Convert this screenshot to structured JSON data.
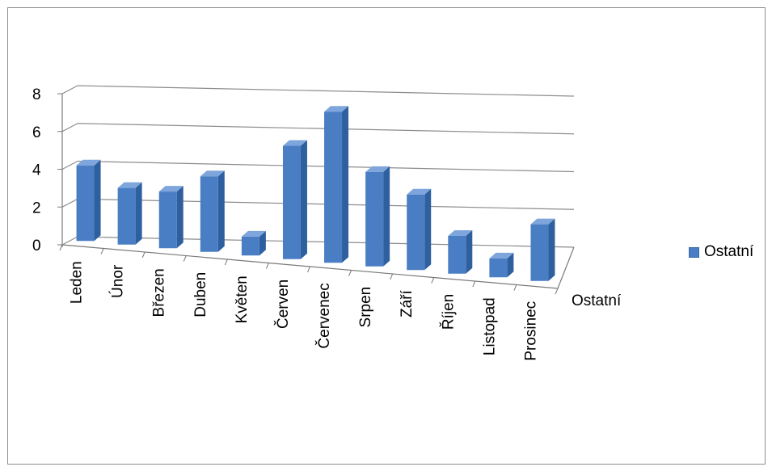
{
  "chart_data": {
    "type": "bar",
    "style": "3d-column",
    "categories": [
      "Leden",
      "Únor",
      "Březen",
      "Duben",
      "Květen",
      "Červen",
      "Červenec",
      "Srpen",
      "Září",
      "Říjen",
      "Listopad",
      "Prosinec"
    ],
    "series": [
      {
        "name": "Ostatní",
        "values": [
          4,
          3,
          3,
          4,
          1,
          6,
          8,
          5,
          4,
          2,
          1,
          3
        ]
      }
    ],
    "series_axis_label": "Ostatní",
    "yticks": [
      0,
      2,
      4,
      6,
      8
    ],
    "ylim": [
      0,
      8
    ],
    "grid": true,
    "legend": {
      "position": "right",
      "entries": [
        "Ostatní"
      ]
    },
    "colors": {
      "bar_front": "#4a7ec4",
      "bar_side": "#2e5f9e",
      "bar_top": "#7ea6dc",
      "grid": "#8c8c8c"
    }
  }
}
